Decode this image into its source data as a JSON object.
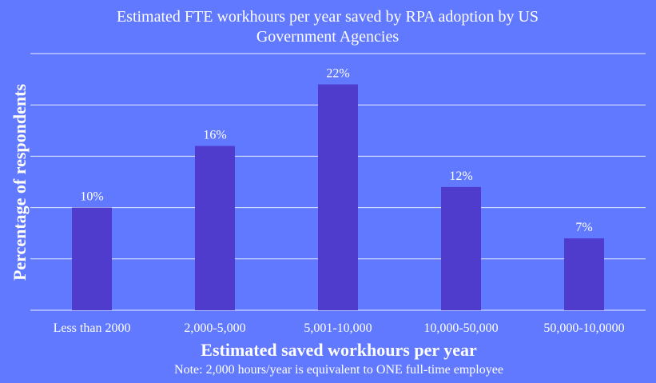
{
  "chart_data": {
    "type": "bar",
    "title_line1": "Estimated FTE workhours per year saved by RPA adoption by US",
    "title_line2": "Government Agencies",
    "xlabel": "Estimated saved workhours per year",
    "ylabel": "Percentage of respondents",
    "note": "Note: 2,000 hours/year is equivalent to ONE full-time employee",
    "categories": [
      "Less than 2000",
      "2,000-5,000",
      "5,001-10,000",
      "10,000-50,000",
      "50,000-10,0000"
    ],
    "values": [
      10,
      16,
      22,
      12,
      7
    ],
    "data_labels": [
      "10%",
      "16%",
      "22%",
      "12%",
      "7%"
    ],
    "ylim": [
      0,
      25
    ],
    "grid": true,
    "legend": "none",
    "colors": {
      "background": "#6179ff",
      "bar": "#4f3ccc",
      "text": "#ffffff",
      "grid": "#ffffff"
    }
  }
}
